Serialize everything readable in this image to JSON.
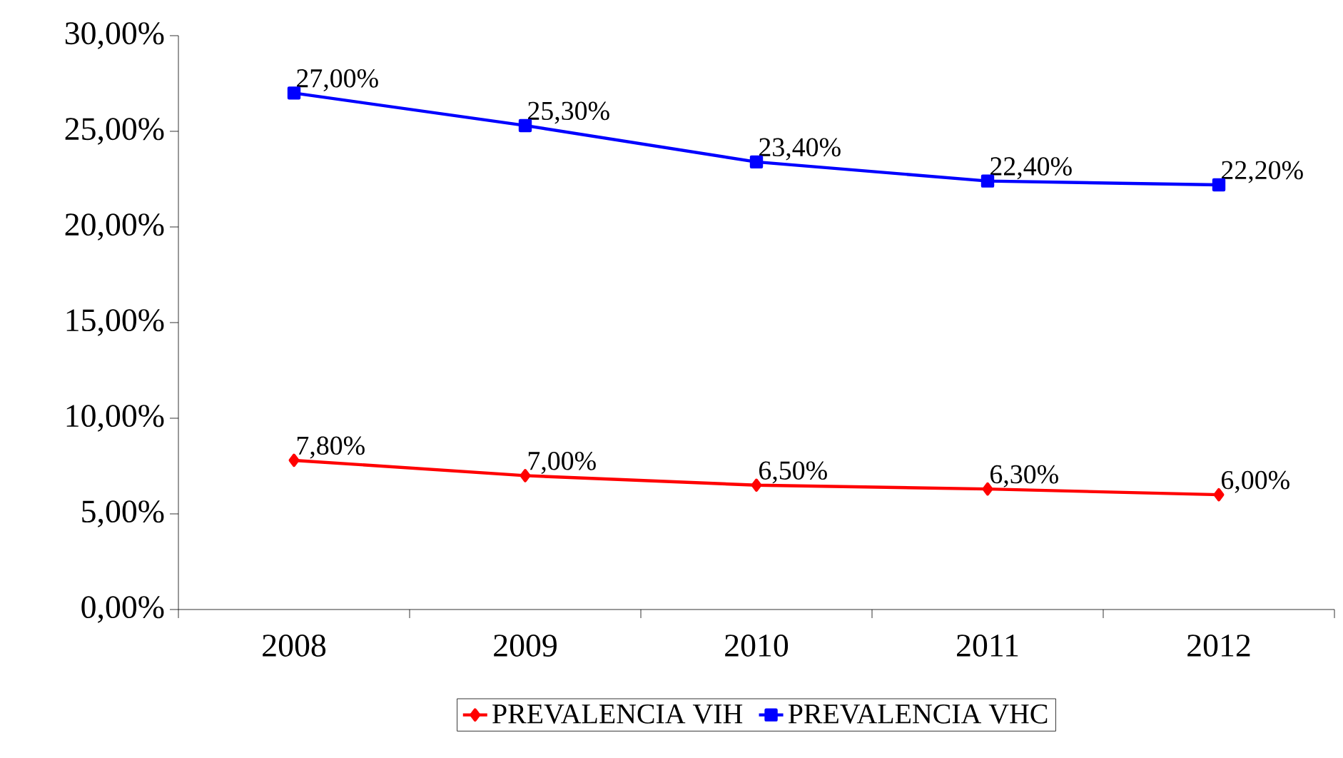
{
  "chart_data": {
    "type": "line",
    "categories": [
      "2008",
      "2009",
      "2010",
      "2011",
      "2012"
    ],
    "series": [
      {
        "name": "PREVALENCIA VIH",
        "color": "#ff0000",
        "marker": "diamond",
        "values": [
          7.8,
          7.0,
          6.5,
          6.3,
          6.0
        ],
        "value_labels": [
          "7,80%",
          "7,00%",
          "6,50%",
          "6,30%",
          "6,00%"
        ]
      },
      {
        "name": "PREVALENCIA VHC",
        "color": "#0000ff",
        "marker": "square",
        "values": [
          27.0,
          25.3,
          23.4,
          22.4,
          22.2
        ],
        "value_labels": [
          "27,00%",
          "25,30%",
          "23,40%",
          "22,40%",
          "22,20%"
        ]
      }
    ],
    "ylim": [
      0,
      30
    ],
    "yticks": [
      {
        "value": 0,
        "label": "0,00%"
      },
      {
        "value": 5,
        "label": "5,00%"
      },
      {
        "value": 10,
        "label": "10,00%"
      },
      {
        "value": 15,
        "label": "15,00%"
      },
      {
        "value": 20,
        "label": "20,00%"
      },
      {
        "value": 25,
        "label": "25,00%"
      },
      {
        "value": 30,
        "label": "30,00%"
      }
    ],
    "grid": false,
    "legend": "bottom",
    "line_style": "solid"
  }
}
